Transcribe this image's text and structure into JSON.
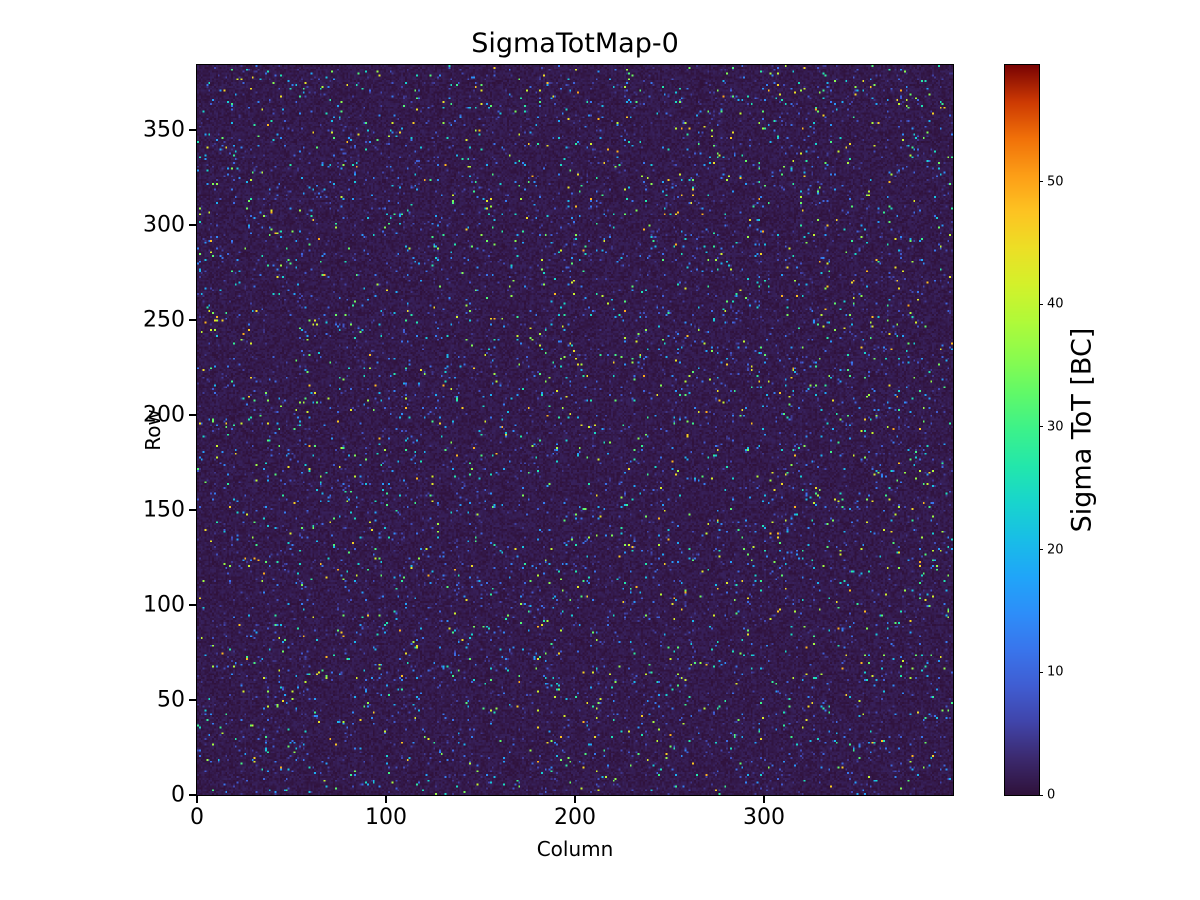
{
  "chart_data": {
    "type": "heatmap",
    "title": "SigmaTotMap-0",
    "xlabel": "Column",
    "ylabel": "Row",
    "x_range": [
      0,
      400
    ],
    "y_range": [
      0,
      384
    ],
    "x_ticks": [
      0,
      100,
      200,
      300
    ],
    "y_ticks": [
      0,
      50,
      100,
      150,
      200,
      250,
      300,
      350
    ],
    "grid": false,
    "legend": "none",
    "colormap": "turbo",
    "colorbar": {
      "label": "Sigma ToT [BC]",
      "side": "right",
      "vmin": 0,
      "vmax": 59.5,
      "ticks": [
        0,
        10,
        20,
        30,
        40,
        50
      ]
    },
    "colormap_stops": [
      [
        0.0,
        48,
        18,
        59
      ],
      [
        0.05,
        60,
        42,
        111
      ],
      [
        0.1,
        65,
        69,
        171
      ],
      [
        0.15,
        64,
        94,
        211
      ],
      [
        0.2,
        57,
        118,
        237
      ],
      [
        0.25,
        45,
        143,
        250
      ],
      [
        0.3,
        32,
        166,
        249
      ],
      [
        0.35,
        25,
        190,
        231
      ],
      [
        0.4,
        24,
        213,
        206
      ],
      [
        0.45,
        35,
        231,
        172
      ],
      [
        0.5,
        60,
        242,
        139
      ],
      [
        0.55,
        96,
        249,
        105
      ],
      [
        0.6,
        139,
        252,
        78
      ],
      [
        0.65,
        177,
        250,
        57
      ],
      [
        0.7,
        212,
        241,
        43
      ],
      [
        0.75,
        237,
        223,
        38
      ],
      [
        0.8,
        254,
        195,
        34
      ],
      [
        0.85,
        253,
        158,
        23
      ],
      [
        0.9,
        241,
        113,
        9
      ],
      [
        0.95,
        205,
        58,
        3
      ],
      [
        1.0,
        122,
        4,
        3
      ]
    ],
    "data_description": {
      "pattern": "sparse random speckle noise over a near-zero dark background (400 columns x 384 rows pixel-detector sigma-ToT map)",
      "background_range": [
        0,
        2
      ],
      "speckle_fraction": 0.045,
      "speckle_range": [
        4,
        50
      ],
      "seed": 20230917
    },
    "colors": {
      "figure_background": "#ffffff",
      "axis_text": "#000000",
      "heatmap_background": "#30123b",
      "colorbar_top": "#7a0403"
    }
  }
}
